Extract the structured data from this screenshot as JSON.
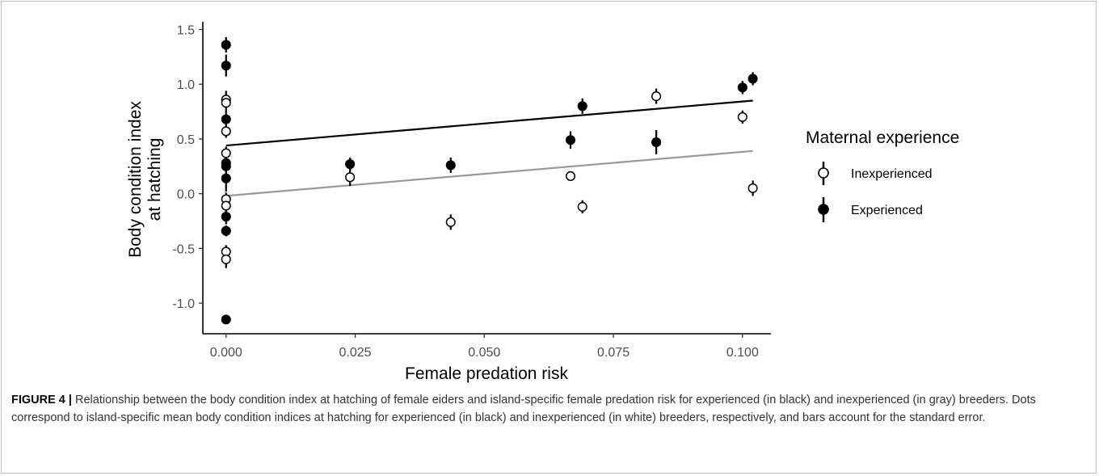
{
  "chart_data": {
    "type": "scatter",
    "xlabel": "Female predation risk",
    "ylabel": [
      "Body condition index",
      "at hatching"
    ],
    "xlim": [
      -0.0045,
      0.1055
    ],
    "ylim": [
      -1.28,
      1.57
    ],
    "x_ticks": [
      0.0,
      0.025,
      0.05,
      0.075,
      0.1
    ],
    "x_tick_labels": [
      "0.000",
      "0.025",
      "0.050",
      "0.075",
      "0.100"
    ],
    "y_ticks": [
      -1.0,
      -0.5,
      0.0,
      0.5,
      1.0,
      1.5
    ],
    "y_tick_labels": [
      "-1.0",
      "-0.5",
      "0.0",
      "0.5",
      "1.0",
      "1.5"
    ],
    "grid": false,
    "legend": {
      "title": "Maternal experience",
      "position": "right",
      "entries": [
        "Inexperienced",
        "Experienced"
      ]
    },
    "series": [
      {
        "name": "Inexperienced",
        "marker": "open-circle",
        "color": "#000000",
        "fill": "#ffffff",
        "fit_line": {
          "x": [
            0.0,
            0.102
          ],
          "y": [
            -0.02,
            0.39
          ],
          "color": "#999999"
        },
        "points": [
          {
            "x": 0.0,
            "y": 0.86,
            "se": 0.08
          },
          {
            "x": 0.0,
            "y": 0.83,
            "se": 0.07
          },
          {
            "x": 0.0,
            "y": 0.57,
            "se": 0.06
          },
          {
            "x": 0.0,
            "y": 0.37,
            "se": 0.06
          },
          {
            "x": 0.0,
            "y": -0.05,
            "se": 0.06
          },
          {
            "x": 0.0,
            "y": -0.11,
            "se": 0.06
          },
          {
            "x": 0.0,
            "y": -0.53,
            "se": 0.06
          },
          {
            "x": 0.0,
            "y": -0.6,
            "se": 0.08
          },
          {
            "x": 0.024,
            "y": 0.15,
            "se": 0.08
          },
          {
            "x": 0.0435,
            "y": -0.26,
            "se": 0.07
          },
          {
            "x": 0.0667,
            "y": 0.16,
            "se": 0.03
          },
          {
            "x": 0.069,
            "y": -0.12,
            "se": 0.06
          },
          {
            "x": 0.0833,
            "y": 0.89,
            "se": 0.07
          },
          {
            "x": 0.1,
            "y": 0.7,
            "se": 0.06
          },
          {
            "x": 0.102,
            "y": 0.05,
            "se": 0.07
          }
        ]
      },
      {
        "name": "Experienced",
        "marker": "filled-circle",
        "color": "#000000",
        "fill": "#000000",
        "fit_line": {
          "x": [
            0.0,
            0.102
          ],
          "y": [
            0.44,
            0.85
          ],
          "color": "#000000"
        },
        "points": [
          {
            "x": 0.0,
            "y": 1.36,
            "se": 0.07
          },
          {
            "x": 0.0,
            "y": 1.17,
            "se": 0.1
          },
          {
            "x": 0.0,
            "y": 0.68,
            "se": 0.08
          },
          {
            "x": 0.0,
            "y": 0.28,
            "se": 0.06
          },
          {
            "x": 0.0,
            "y": 0.25,
            "se": 0.07
          },
          {
            "x": 0.0,
            "y": 0.14,
            "se": 0.12
          },
          {
            "x": 0.0,
            "y": -0.21,
            "se": 0.07
          },
          {
            "x": 0.0,
            "y": -0.34,
            "se": 0.05
          },
          {
            "x": 0.0,
            "y": -1.15,
            "se": 0.03
          },
          {
            "x": 0.024,
            "y": 0.27,
            "se": 0.06
          },
          {
            "x": 0.0435,
            "y": 0.26,
            "se": 0.07
          },
          {
            "x": 0.0667,
            "y": 0.49,
            "se": 0.08
          },
          {
            "x": 0.069,
            "y": 0.8,
            "se": 0.07
          },
          {
            "x": 0.0833,
            "y": 0.47,
            "se": 0.11
          },
          {
            "x": 0.1,
            "y": 0.97,
            "se": 0.06
          },
          {
            "x": 0.102,
            "y": 1.05,
            "se": 0.06
          }
        ]
      }
    ]
  },
  "caption": {
    "label": "FIGURE 4 |",
    "text": " Relationship between the body condition index at hatching of female eiders and island-specific female predation risk for experienced (in black) and inexperienced (in gray) breeders. Dots correspond to island-specific mean body condition indices at hatching for experienced (in black) and inexperienced (in white) breeders, respectively, and bars account for the standard error."
  }
}
